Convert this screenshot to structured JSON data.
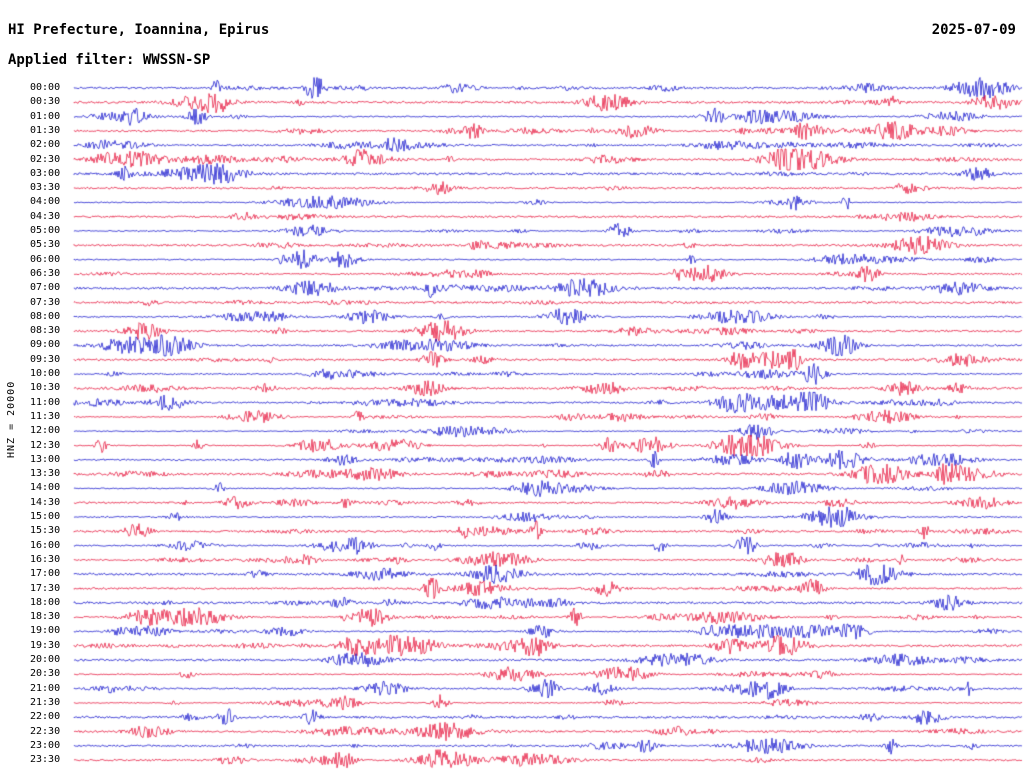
{
  "header": {
    "title": "HI Prefecture, Ioannina, Epirus",
    "date": "2025-07-09",
    "filter_label": "Applied filter: WWSSN-SP"
  },
  "chart_data": {
    "type": "line",
    "kind": "helicorder-seismogram",
    "title": "HI Prefecture, Ioannina, Epirus",
    "date": "2025-07-09",
    "filter": "WWSSN-SP",
    "channel": "HNZ",
    "scale": "20000",
    "side_label": "HNZ = 20000",
    "minutes_per_row": 30,
    "rows": [
      "00:00",
      "00:30",
      "01:00",
      "01:30",
      "02:00",
      "02:30",
      "03:00",
      "03:30",
      "04:00",
      "04:30",
      "05:00",
      "05:30",
      "06:00",
      "06:30",
      "07:00",
      "07:30",
      "08:00",
      "08:30",
      "09:00",
      "09:30",
      "10:00",
      "10:30",
      "11:00",
      "11:30",
      "12:00",
      "12:30",
      "13:00",
      "13:30",
      "14:00",
      "14:30",
      "15:00",
      "15:30",
      "16:00",
      "16:30",
      "17:00",
      "17:30",
      "18:00",
      "18:30",
      "19:00",
      "19:30",
      "20:00",
      "20:30",
      "21:00",
      "21:30",
      "22:00",
      "22:30",
      "23:00",
      "23:30"
    ],
    "trace_colors": [
      "#0000c8",
      "#e4002c"
    ],
    "trace_color_meaning": "rows alternate blue (even rows) and red (odd rows)",
    "waveform_note": "continuous microseismic noise with scattered higher-amplitude event bursts along every 30-minute trace; exact sample values not readable from image"
  }
}
